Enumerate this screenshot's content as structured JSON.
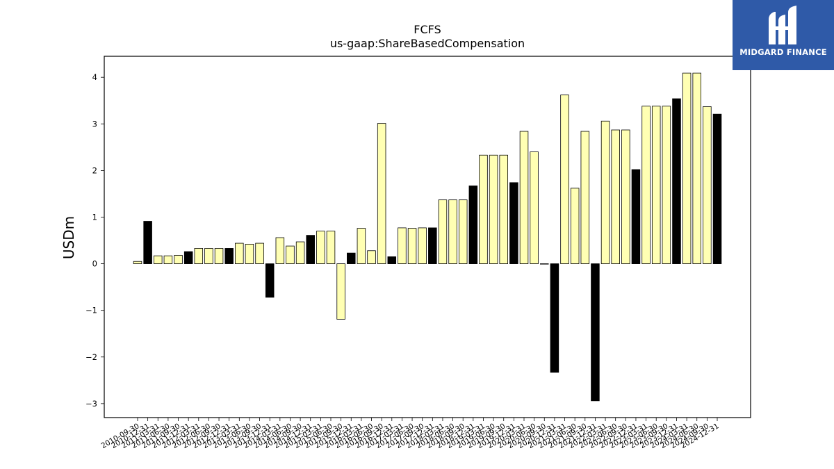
{
  "chart_data": {
    "type": "bar",
    "title": "FCFS",
    "subtitle": "us-gaap:ShareBasedCompensation",
    "xlabel": "",
    "ylabel": "USDm",
    "ylim": [
      -3.3,
      4.45
    ],
    "yticks": [
      4,
      3,
      2,
      1,
      0,
      -1,
      -2,
      -3
    ],
    "ytick_labels": [
      "4",
      "3",
      "2",
      "1",
      "0",
      "−1",
      "−2",
      "−3"
    ],
    "grid": false,
    "legend": "none",
    "colors": {
      "quarter": "#ffffb3",
      "year_end": "#000000",
      "edge": "#000000"
    },
    "categories": [
      "2010-09-30",
      "2010-12-31",
      "2011-03-31",
      "2011-06-30",
      "2011-09-30",
      "2011-12-31",
      "2012-03-31",
      "2012-06-30",
      "2012-09-30",
      "2012-12-31",
      "2013-03-31",
      "2013-06-30",
      "2013-09-30",
      "2013-12-31",
      "2014-03-31",
      "2014-06-30",
      "2014-09-30",
      "2014-12-31",
      "2015-03-31",
      "2015-06-30",
      "2015-09-30",
      "2015-12-31",
      "2016-03-31",
      "2016-06-30",
      "2016-09-30",
      "2016-12-31",
      "2017-03-31",
      "2017-06-30",
      "2017-09-30",
      "2017-12-31",
      "2018-03-31",
      "2018-06-30",
      "2018-09-30",
      "2018-12-31",
      "2019-03-31",
      "2019-06-30",
      "2019-09-30",
      "2019-12-31",
      "2020-03-31",
      "2020-06-30",
      "2020-09-30",
      "2020-12-31",
      "2021-03-31",
      "2021-06-30",
      "2021-09-30",
      "2021-12-31",
      "2022-03-31",
      "2022-06-30",
      "2022-09-30",
      "2022-12-31",
      "2023-03-31",
      "2023-06-30",
      "2023-09-30",
      "2023-12-31",
      "2024-03-31",
      "2024-06-30",
      "2024-09-30",
      "2024-12-31"
    ],
    "values": [
      0.05,
      0.91,
      0.17,
      0.17,
      0.18,
      0.26,
      0.33,
      0.33,
      0.33,
      0.33,
      0.44,
      0.42,
      0.44,
      -0.72,
      0.56,
      0.38,
      0.47,
      0.61,
      0.7,
      0.7,
      -1.19,
      0.23,
      0.76,
      0.28,
      3.01,
      0.15,
      0.77,
      0.76,
      0.77,
      0.77,
      1.37,
      1.37,
      1.37,
      1.67,
      2.33,
      2.33,
      2.33,
      1.74,
      2.84,
      2.4,
      0.0,
      -2.33,
      3.62,
      1.62,
      2.84,
      -2.94,
      3.06,
      2.87,
      2.87,
      2.02,
      3.38,
      3.38,
      3.38,
      3.54,
      4.09,
      4.09,
      3.37,
      3.21
    ],
    "year_end": [
      false,
      true,
      false,
      false,
      false,
      true,
      false,
      false,
      false,
      true,
      false,
      false,
      false,
      true,
      false,
      false,
      false,
      true,
      false,
      false,
      false,
      true,
      false,
      false,
      false,
      true,
      false,
      false,
      false,
      true,
      false,
      false,
      false,
      true,
      false,
      false,
      false,
      true,
      false,
      false,
      false,
      true,
      false,
      false,
      false,
      true,
      false,
      false,
      false,
      true,
      false,
      false,
      false,
      true,
      false,
      false,
      false,
      true
    ]
  },
  "brand": {
    "name": "MIDGARD FINANCE",
    "background": "#2f5aa8",
    "text_color": "#ffffff"
  }
}
